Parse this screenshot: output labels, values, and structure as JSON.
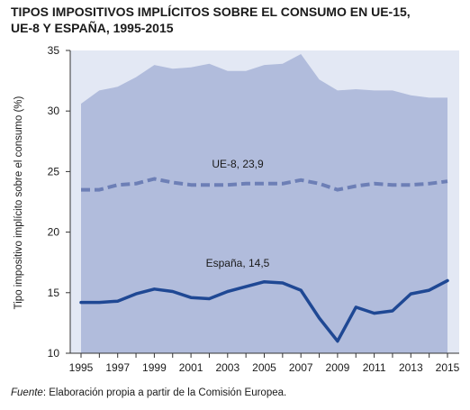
{
  "header": {
    "title_line1": "TIPOS IMPOSITIVOS IMPLÍCITOS SOBRE EL CONSUMO EN UE-15,",
    "title_line2": "UE-8 Y ESPAÑA, 1995-2015"
  },
  "footer": {
    "source_label": "Fuente",
    "source_text": ": Elaboración propia a partir de la Comisión Europea."
  },
  "colors": {
    "area": "#b1bcdc",
    "plot_bg": "#e3e8f4",
    "ue8": "#6d7fb6",
    "spain": "#1f4894"
  },
  "chart_data": {
    "type": "area",
    "x": [
      1995,
      1996,
      1997,
      1998,
      1999,
      2000,
      2001,
      2002,
      2003,
      2004,
      2005,
      2006,
      2007,
      2008,
      2009,
      2010,
      2011,
      2012,
      2013,
      2014,
      2015
    ],
    "xticks": [
      "1995",
      "1997",
      "1999",
      "2001",
      "2003",
      "2005",
      "2007",
      "2009",
      "2011",
      "2013",
      "2015"
    ],
    "yticks": [
      "10",
      "15",
      "20",
      "25",
      "30",
      "35"
    ],
    "ylim": [
      10,
      35
    ],
    "ylabel": "Tipo impositivo implícito sobre el consumo (%)",
    "xlabel": "",
    "grid": false,
    "series": [
      {
        "key": "ue15",
        "style": "area",
        "values": [
          30.6,
          31.7,
          32.0,
          32.8,
          33.8,
          33.5,
          33.6,
          33.9,
          33.3,
          33.3,
          33.8,
          33.9,
          34.7,
          32.6,
          31.7,
          31.8,
          31.7,
          31.7,
          31.3,
          31.1,
          31.1
        ]
      },
      {
        "key": "ue8",
        "name": "UE-8, 23,9",
        "style": "dashed",
        "values": [
          23.5,
          23.5,
          23.9,
          24.0,
          24.4,
          24.1,
          23.9,
          23.9,
          23.9,
          24.0,
          24.0,
          24.0,
          24.3,
          24.0,
          23.5,
          23.8,
          24.0,
          23.9,
          23.9,
          24.0,
          24.2
        ]
      },
      {
        "key": "spain",
        "name": "España, 14,5",
        "style": "solid",
        "values": [
          14.2,
          14.2,
          14.3,
          14.9,
          15.3,
          15.1,
          14.6,
          14.5,
          15.1,
          15.5,
          15.9,
          15.8,
          15.2,
          12.9,
          11.0,
          13.8,
          13.3,
          13.5,
          14.9,
          15.2,
          16.0
        ]
      }
    ]
  }
}
